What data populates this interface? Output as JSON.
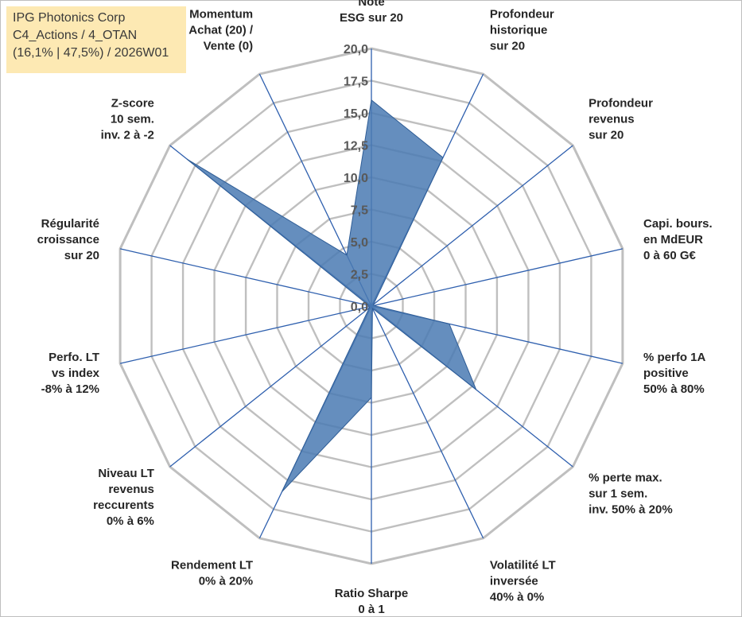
{
  "title_box": {
    "line1": "IPG Photonics Corp",
    "line2": "C4_Actions / 4_OTAN",
    "line3": "(16,1% | 47,5%) / 2026W01"
  },
  "colors": {
    "fill": "#4a7ab3",
    "stroke": "#2f5d96",
    "spoke": "#2e5fae",
    "ring": "#bfbfbf"
  },
  "chart_data": {
    "type": "radar",
    "ylim": [
      0,
      20
    ],
    "ticks": [
      "0,0",
      "2,5",
      "5,0",
      "7,5",
      "10,0",
      "12,5",
      "15,0",
      "17,5",
      "20,0"
    ],
    "axes": [
      {
        "lines": [
          "Note",
          "ESG sur 20"
        ],
        "value": 16.0
      },
      {
        "lines": [
          "Profondeur",
          "historique",
          "sur 20"
        ],
        "value": 12.8
      },
      {
        "lines": [
          "Profondeur",
          "revenus",
          "sur 20"
        ],
        "value": 0.2
      },
      {
        "lines": [
          "Capi. bours.",
          "en MdEUR",
          "0 à 60 G€"
        ],
        "value": 0.2
      },
      {
        "lines": [
          "% perfo 1A",
          "positive",
          "50% à 80%"
        ],
        "value": 6.2
      },
      {
        "lines": [
          "% perte max.",
          "sur 1 sem.",
          "inv. 50% à 20%"
        ],
        "value": 10.4
      },
      {
        "lines": [
          "Volatilité LT",
          "inversée",
          "40% à 0%"
        ],
        "value": 0.2
      },
      {
        "lines": [
          "Ratio Sharpe",
          "0 à 1"
        ],
        "value": 7.1
      },
      {
        "lines": [
          "Rendement LT",
          "0% à 20%"
        ],
        "value": 16.0
      },
      {
        "lines": [
          "Niveau LT",
          "revenus",
          "reccurents",
          "0% à 6%"
        ],
        "value": 0.2
      },
      {
        "lines": [
          "Perfo. LT",
          "vs index",
          "-8% à 12%"
        ],
        "value": 0.2
      },
      {
        "lines": [
          "Régularité",
          "croissance",
          "sur 20"
        ],
        "value": 0.2
      },
      {
        "lines": [
          "Z-score",
          "10 sem.",
          "inv. 2 à -2"
        ],
        "value": 18.3
      },
      {
        "lines": [
          "Momentum",
          "Achat (20) /",
          "Vente (0)"
        ],
        "value": 4.4
      }
    ]
  }
}
